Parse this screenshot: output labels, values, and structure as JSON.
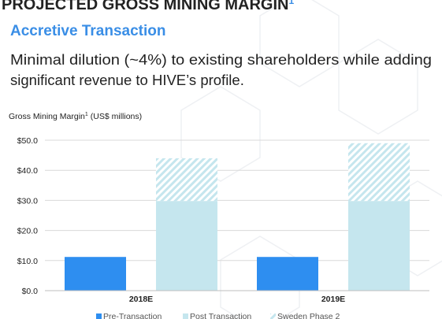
{
  "header": {
    "title": "PROJECTED GROSS MINING MARGIN",
    "title_note": "1",
    "subtitle": "Accretive Transaction",
    "body": [
      "Minimal dilution (~4%) to existing shareholders while adding",
      "significant revenue to HIVE’s profile."
    ]
  },
  "chart_data": {
    "type": "bar",
    "title": "Gross Mining Margin",
    "title_note": "1",
    "title_unit": "(US$ millions)",
    "categories": [
      "2018E",
      "2019E"
    ],
    "series": [
      {
        "name": "Pre-Transaction",
        "color": "#2e8ef0",
        "values": [
          11.2,
          11.2
        ]
      },
      {
        "name": "Post Transaction",
        "color": "#c5e6ee",
        "values": [
          29.8,
          29.8
        ]
      },
      {
        "name": "Sweden Phase 2",
        "color": "#c5e6ee",
        "hatched": true,
        "stacked": true,
        "values": [
          14.2,
          19.2
        ]
      }
    ],
    "ylim": [
      0,
      50
    ],
    "yticks": [
      {
        "value": 0,
        "label": "$0.0"
      },
      {
        "value": 10,
        "label": "$10.0"
      },
      {
        "value": 20,
        "label": "$20.0"
      },
      {
        "value": 30,
        "label": "$30.0"
      },
      {
        "value": 40,
        "label": "$40.0"
      },
      {
        "value": 50,
        "label": "$50.0"
      }
    ],
    "grid": true,
    "legend": "bottom"
  }
}
